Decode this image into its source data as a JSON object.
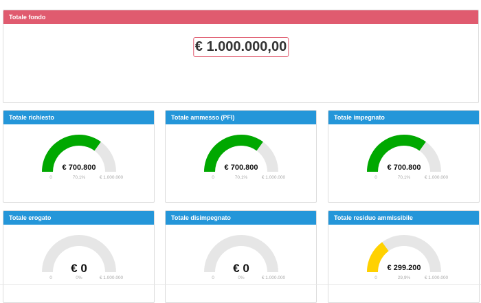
{
  "fondo": {
    "title": "Totale fondo",
    "value": "€ 1.000.000,00"
  },
  "colors": {
    "header_red": "#e05b6f",
    "header_blue": "#2496d9",
    "gauge_green": "#00a800",
    "gauge_yellow": "#ffd100",
    "gauge_track": "#e6e6e6"
  },
  "gauges": [
    {
      "title": "Totale richiesto",
      "value": "€ 700.800",
      "fraction": 0.701,
      "percent": "70,1%",
      "min": "0",
      "max": "€ 1.000.000",
      "color": "#00a800"
    },
    {
      "title": "Totale ammesso (PFI)",
      "value": "€ 700.800",
      "fraction": 0.701,
      "percent": "70,1%",
      "min": "0",
      "max": "€ 1.000.000",
      "color": "#00a800"
    },
    {
      "title": "Totale impegnato",
      "value": "€ 700.800",
      "fraction": 0.701,
      "percent": "70,1%",
      "min": "0",
      "max": "€ 1.000.000",
      "color": "#00a800"
    },
    {
      "title": "Totale erogato",
      "value": "€ 0",
      "fraction": 0,
      "percent": "0%",
      "min": "0",
      "max": "€ 1.000.000",
      "color": "#00a800"
    },
    {
      "title": "Totale disimpegnato",
      "value": "€ 0",
      "fraction": 0,
      "percent": "0%",
      "min": "0",
      "max": "€ 1.000.000",
      "color": "#00a800"
    },
    {
      "title": "Totale residuo ammissibile",
      "value": "€ 299.200",
      "fraction": 0.299,
      "percent": "29,9%",
      "min": "0",
      "max": "€ 1.000.000",
      "color": "#ffd100"
    }
  ]
}
